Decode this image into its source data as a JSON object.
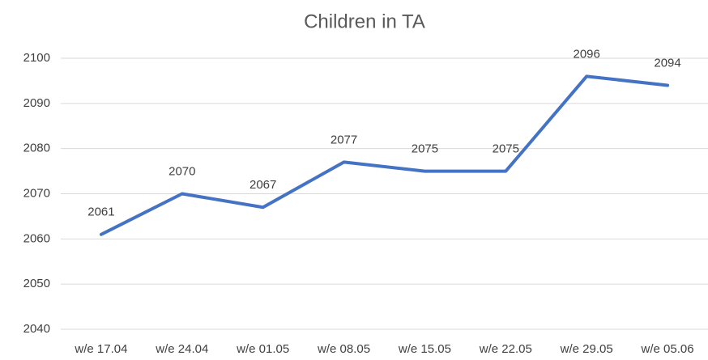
{
  "chart_data": {
    "type": "line",
    "title": "Children in TA",
    "categories": [
      "w/e 17.04",
      "w/e 24.04",
      "w/e 01.05",
      "w/e 08.05",
      "w/e 15.05",
      "w/e 22.05",
      "w/e 29.05",
      "w/e 05.06"
    ],
    "values": [
      2061,
      2070,
      2067,
      2077,
      2075,
      2075,
      2096,
      2094
    ],
    "color": "#4472c4",
    "ylim": [
      2040,
      2100
    ],
    "yticks": [
      2040,
      2050,
      2060,
      2070,
      2080,
      2090,
      2100
    ],
    "grid": true
  }
}
